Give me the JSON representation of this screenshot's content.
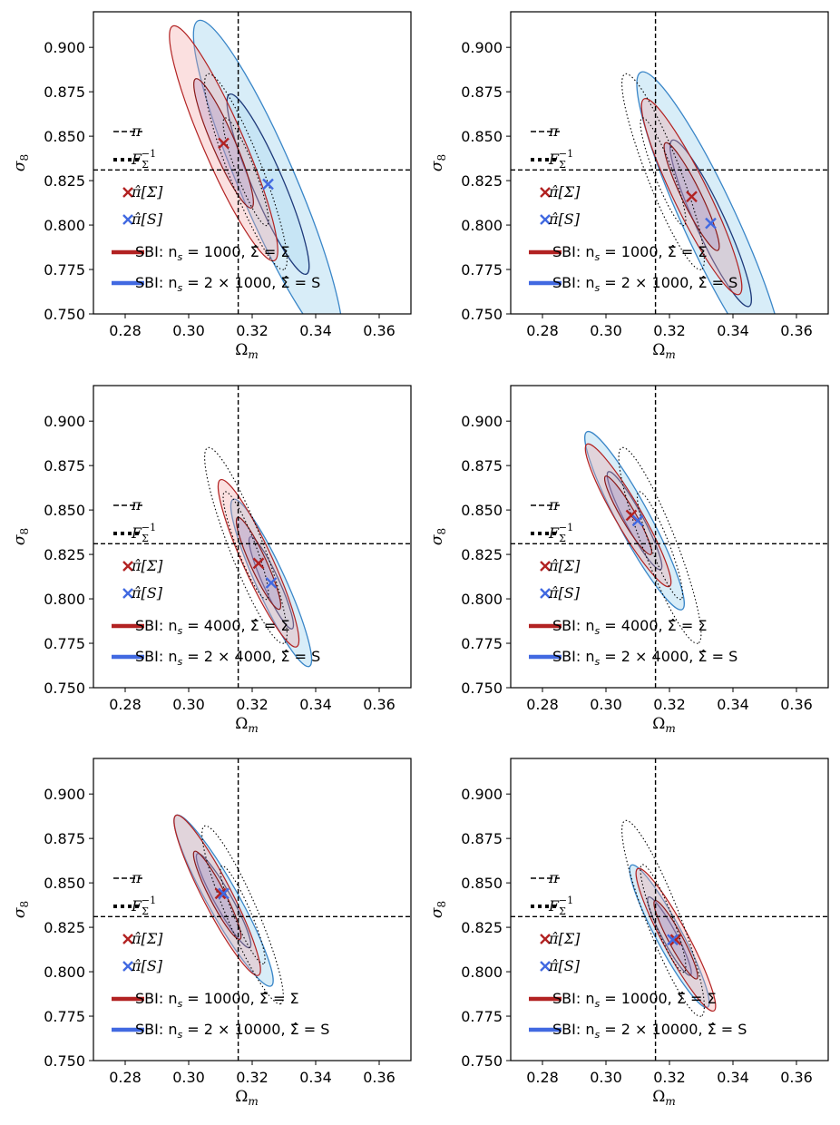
{
  "chart_data": [
    {
      "type": "contour",
      "xlabel": "Ω",
      "xlabel_sub": "m",
      "ylabel": "σ",
      "ylabel_sub": "8",
      "xlim": [
        0.27,
        0.37
      ],
      "ylim": [
        0.75,
        0.92
      ],
      "xticks": [
        "0.28",
        "0.30",
        "0.32",
        "0.34",
        "0.36"
      ],
      "yticks": [
        "0.750",
        "0.775",
        "0.800",
        "0.825",
        "0.850",
        "0.875",
        "0.900"
      ],
      "fiducial": {
        "omega_m": 0.3156,
        "sigma_8": 0.831
      },
      "fisher": {
        "cx": 0.318,
        "cy": 0.83,
        "rx": 0.012,
        "ry": 0.055
      },
      "red": {
        "cx": 0.311,
        "cy": 0.846,
        "rx": 0.016,
        "ry": 0.066
      },
      "blue": {
        "cx": 0.325,
        "cy": 0.823,
        "rx": 0.022,
        "ry": 0.092
      },
      "markers": [
        {
          "series": "red",
          "x": 0.311,
          "y": 0.846
        },
        {
          "series": "blue",
          "x": 0.325,
          "y": 0.823
        }
      ],
      "legend": [
        {
          "kind": "dashed",
          "label": "π"
        },
        {
          "kind": "dotted",
          "label": "F",
          "sub": "Σ",
          "sup": "−1"
        },
        {
          "kind": "marker-red",
          "label": "π̂[Σ]"
        },
        {
          "kind": "marker-blue",
          "label": "π̂[S]"
        },
        {
          "kind": "line-red",
          "label": "SBI: n",
          "sub": "s",
          "rest": " = 1000, Σ̂ = Σ"
        },
        {
          "kind": "line-blue",
          "label": "SBI: n",
          "sub": "s",
          "rest": " = 2 × 1000, Σ̂ = S"
        }
      ]
    },
    {
      "type": "contour",
      "xlabel": "Ω",
      "xlabel_sub": "m",
      "ylabel": "σ",
      "ylabel_sub": "8",
      "xlim": [
        0.27,
        0.37
      ],
      "ylim": [
        0.75,
        0.92
      ],
      "xticks": [
        "0.28",
        "0.30",
        "0.32",
        "0.34",
        "0.36"
      ],
      "yticks": [
        "0.750",
        "0.775",
        "0.800",
        "0.825",
        "0.850",
        "0.875",
        "0.900"
      ],
      "fiducial": {
        "omega_m": 0.3156,
        "sigma_8": 0.831
      },
      "fisher": {
        "cx": 0.318,
        "cy": 0.83,
        "rx": 0.012,
        "ry": 0.055
      },
      "red": {
        "cx": 0.327,
        "cy": 0.816,
        "rx": 0.015,
        "ry": 0.055
      },
      "blue": {
        "cx": 0.333,
        "cy": 0.801,
        "rx": 0.022,
        "ry": 0.085
      },
      "markers": [
        {
          "series": "red",
          "x": 0.327,
          "y": 0.816
        },
        {
          "series": "blue",
          "x": 0.333,
          "y": 0.801
        }
      ],
      "legend": [
        {
          "kind": "dashed",
          "label": "π"
        },
        {
          "kind": "dotted",
          "label": "F",
          "sub": "Σ",
          "sup": "−1"
        },
        {
          "kind": "marker-red",
          "label": "π̂[Σ]"
        },
        {
          "kind": "marker-blue",
          "label": "π̂[S]"
        },
        {
          "kind": "line-red",
          "label": "SBI: n",
          "sub": "s",
          "rest": " = 1000, Σ̂ = Σ"
        },
        {
          "kind": "line-blue",
          "label": "SBI: n",
          "sub": "s",
          "rest": " = 2 × 1000, Σ̂ = S"
        }
      ]
    },
    {
      "type": "contour",
      "xlabel": "Ω",
      "xlabel_sub": "m",
      "ylabel": "σ",
      "ylabel_sub": "8",
      "xlim": [
        0.27,
        0.37
      ],
      "ylim": [
        0.75,
        0.92
      ],
      "xticks": [
        "0.28",
        "0.30",
        "0.32",
        "0.34",
        "0.36"
      ],
      "yticks": [
        "0.750",
        "0.775",
        "0.800",
        "0.825",
        "0.850",
        "0.875",
        "0.900"
      ],
      "fiducial": {
        "omega_m": 0.3156,
        "sigma_8": 0.831
      },
      "fisher": {
        "cx": 0.318,
        "cy": 0.83,
        "rx": 0.012,
        "ry": 0.055
      },
      "red": {
        "cx": 0.322,
        "cy": 0.82,
        "rx": 0.012,
        "ry": 0.047
      },
      "blue": {
        "cx": 0.326,
        "cy": 0.809,
        "rx": 0.012,
        "ry": 0.047
      },
      "markers": [
        {
          "series": "red",
          "x": 0.322,
          "y": 0.82
        },
        {
          "series": "blue",
          "x": 0.326,
          "y": 0.809
        }
      ],
      "legend": [
        {
          "kind": "dashed",
          "label": "π"
        },
        {
          "kind": "dotted",
          "label": "F",
          "sub": "Σ",
          "sup": "−1"
        },
        {
          "kind": "marker-red",
          "label": "π̂[Σ]"
        },
        {
          "kind": "marker-blue",
          "label": "π̂[S]"
        },
        {
          "kind": "line-red",
          "label": "SBI: n",
          "sub": "s",
          "rest": " = 4000, Σ̂ = Σ"
        },
        {
          "kind": "line-blue",
          "label": "SBI: n",
          "sub": "s",
          "rest": " = 2 × 4000, Σ̂ = S"
        }
      ]
    },
    {
      "type": "contour",
      "xlabel": "Ω",
      "xlabel_sub": "m",
      "ylabel": "σ",
      "ylabel_sub": "8",
      "xlim": [
        0.27,
        0.37
      ],
      "ylim": [
        0.75,
        0.92
      ],
      "xticks": [
        "0.28",
        "0.30",
        "0.32",
        "0.34",
        "0.36"
      ],
      "yticks": [
        "0.750",
        "0.775",
        "0.800",
        "0.825",
        "0.850",
        "0.875",
        "0.900"
      ],
      "fiducial": {
        "omega_m": 0.3156,
        "sigma_8": 0.831
      },
      "fisher": {
        "cx": 0.317,
        "cy": 0.83,
        "rx": 0.012,
        "ry": 0.055
      },
      "red": {
        "cx": 0.307,
        "cy": 0.847,
        "rx": 0.013,
        "ry": 0.04
      },
      "blue": {
        "cx": 0.309,
        "cy": 0.844,
        "rx": 0.015,
        "ry": 0.05
      },
      "markers": [
        {
          "series": "red",
          "x": 0.308,
          "y": 0.847
        },
        {
          "series": "blue",
          "x": 0.31,
          "y": 0.844
        }
      ],
      "legend": [
        {
          "kind": "dashed",
          "label": "π"
        },
        {
          "kind": "dotted",
          "label": "F",
          "sub": "Σ",
          "sup": "−1"
        },
        {
          "kind": "marker-red",
          "label": "π̂[Σ]"
        },
        {
          "kind": "marker-blue",
          "label": "π̂[S]"
        },
        {
          "kind": "line-red",
          "label": "SBI: n",
          "sub": "s",
          "rest": " = 4000, Σ̂ = Σ"
        },
        {
          "kind": "line-blue",
          "label": "SBI: n",
          "sub": "s",
          "rest": " = 2 × 4000, Σ̂ = S"
        }
      ]
    },
    {
      "type": "contour",
      "xlabel": "Ω",
      "xlabel_sub": "m",
      "ylabel": "σ",
      "ylabel_sub": "8",
      "xlim": [
        0.27,
        0.37
      ],
      "ylim": [
        0.75,
        0.92
      ],
      "xticks": [
        "0.28",
        "0.30",
        "0.32",
        "0.34",
        "0.36"
      ],
      "yticks": [
        "0.750",
        "0.775",
        "0.800",
        "0.825",
        "0.850",
        "0.875",
        "0.900"
      ],
      "fiducial": {
        "omega_m": 0.3156,
        "sigma_8": 0.831
      },
      "fisher": {
        "cx": 0.317,
        "cy": 0.832,
        "rx": 0.012,
        "ry": 0.05
      },
      "red": {
        "cx": 0.309,
        "cy": 0.843,
        "rx": 0.013,
        "ry": 0.045
      },
      "blue": {
        "cx": 0.311,
        "cy": 0.84,
        "rx": 0.015,
        "ry": 0.048
      },
      "markers": [
        {
          "series": "red",
          "x": 0.31,
          "y": 0.844
        },
        {
          "series": "blue",
          "x": 0.311,
          "y": 0.844
        }
      ],
      "legend": [
        {
          "kind": "dashed",
          "label": "π"
        },
        {
          "kind": "dotted",
          "label": "F",
          "sub": "Σ",
          "sup": "−1"
        },
        {
          "kind": "marker-red",
          "label": "π̂[Σ]"
        },
        {
          "kind": "marker-blue",
          "label": "π̂[S]"
        },
        {
          "kind": "line-red",
          "label": "SBI: n",
          "sub": "s",
          "rest": " = 10000, Σ̂ = Σ"
        },
        {
          "kind": "line-blue",
          "label": "SBI: n",
          "sub": "s",
          "rest": " = 2 × 10000, Σ̂ = S"
        }
      ]
    },
    {
      "type": "contour",
      "xlabel": "Ω",
      "xlabel_sub": "m",
      "ylabel": "σ",
      "ylabel_sub": "8",
      "xlim": [
        0.27,
        0.37
      ],
      "ylim": [
        0.75,
        0.92
      ],
      "xticks": [
        "0.28",
        "0.30",
        "0.32",
        "0.34",
        "0.36"
      ],
      "yticks": [
        "0.750",
        "0.775",
        "0.800",
        "0.825",
        "0.850",
        "0.875",
        "0.900"
      ],
      "fiducial": {
        "omega_m": 0.3156,
        "sigma_8": 0.831
      },
      "fisher": {
        "cx": 0.318,
        "cy": 0.83,
        "rx": 0.012,
        "ry": 0.055
      },
      "red": {
        "cx": 0.322,
        "cy": 0.818,
        "rx": 0.012,
        "ry": 0.04
      },
      "blue": {
        "cx": 0.32,
        "cy": 0.82,
        "rx": 0.012,
        "ry": 0.04
      },
      "markers": [
        {
          "series": "red",
          "x": 0.322,
          "y": 0.818
        },
        {
          "series": "blue",
          "x": 0.321,
          "y": 0.818
        }
      ],
      "legend": [
        {
          "kind": "dashed",
          "label": "π"
        },
        {
          "kind": "dotted",
          "label": "F",
          "sub": "Σ",
          "sup": "−1"
        },
        {
          "kind": "marker-red",
          "label": "π̂[Σ]"
        },
        {
          "kind": "marker-blue",
          "label": "π̂[S]"
        },
        {
          "kind": "line-red",
          "label": "SBI: n",
          "sub": "s",
          "rest": " = 10000, Σ̂ = Σ"
        },
        {
          "kind": "line-blue",
          "label": "SBI: n",
          "sub": "s",
          "rest": " = 2 × 10000, Σ̂ = S"
        }
      ]
    }
  ],
  "colors": {
    "red_line": "#b22222",
    "red_inner": "#8b1a1a",
    "red_fill": "#f4a6a6",
    "blue_line": "#3a86c8",
    "blue_inner": "#1f3a7a",
    "blue_fill": "#a8d8f0",
    "red_marker": "#b22222",
    "blue_marker": "#4169e1",
    "legend_red": "#b22222",
    "legend_blue": "#4169e1"
  }
}
